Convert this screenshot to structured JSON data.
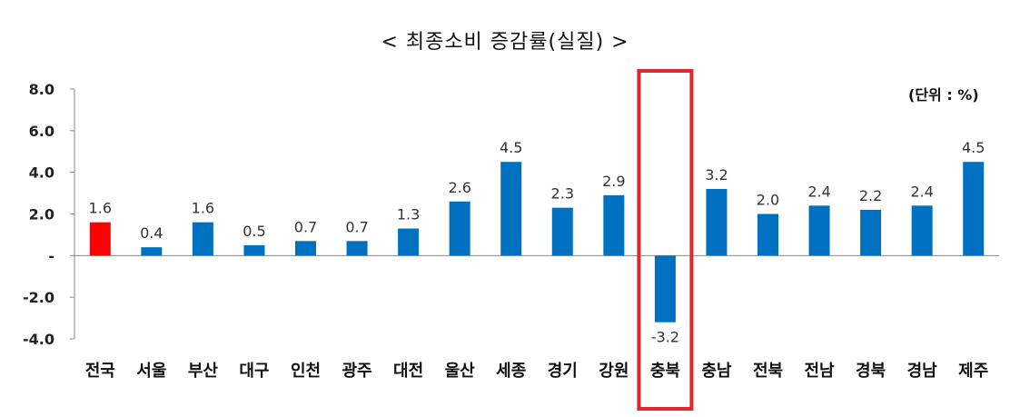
{
  "chart_data": {
    "type": "bar",
    "title": "< 최종소비 증감률(실질) >",
    "unit_label": "(단위 : %)",
    "categories": [
      "전국",
      "서울",
      "부산",
      "대구",
      "인천",
      "광주",
      "대전",
      "울산",
      "세종",
      "경기",
      "강원",
      "충북",
      "충남",
      "전북",
      "전남",
      "경북",
      "경남",
      "제주"
    ],
    "values": [
      1.6,
      0.4,
      1.6,
      0.5,
      0.7,
      0.7,
      1.3,
      2.6,
      4.5,
      2.3,
      2.9,
      -3.2,
      3.2,
      2.0,
      2.4,
      2.2,
      2.4,
      4.5
    ],
    "value_labels": [
      "1.6",
      "0.4",
      "1.6",
      "0.5",
      "0.7",
      "0.7",
      "1.3",
      "2.6",
      "4.5",
      "2.3",
      "2.9",
      "-3.2",
      "3.2",
      "2.0",
      "2.4",
      "2.2",
      "2.4",
      "4.5"
    ],
    "y_ticks": [
      "8.0",
      "6.0",
      "4.0",
      "2.0",
      "-",
      "-2.0",
      "-4.0"
    ],
    "y_tick_values": [
      8,
      6,
      4,
      2,
      0,
      -2,
      -4
    ],
    "ylim": [
      -4,
      8
    ],
    "grid": false,
    "colors": {
      "default_bar": "#0070c0",
      "national_bar": "#ff0000",
      "highlight_box": "#e0262c"
    },
    "highlighted_category": "충북"
  }
}
